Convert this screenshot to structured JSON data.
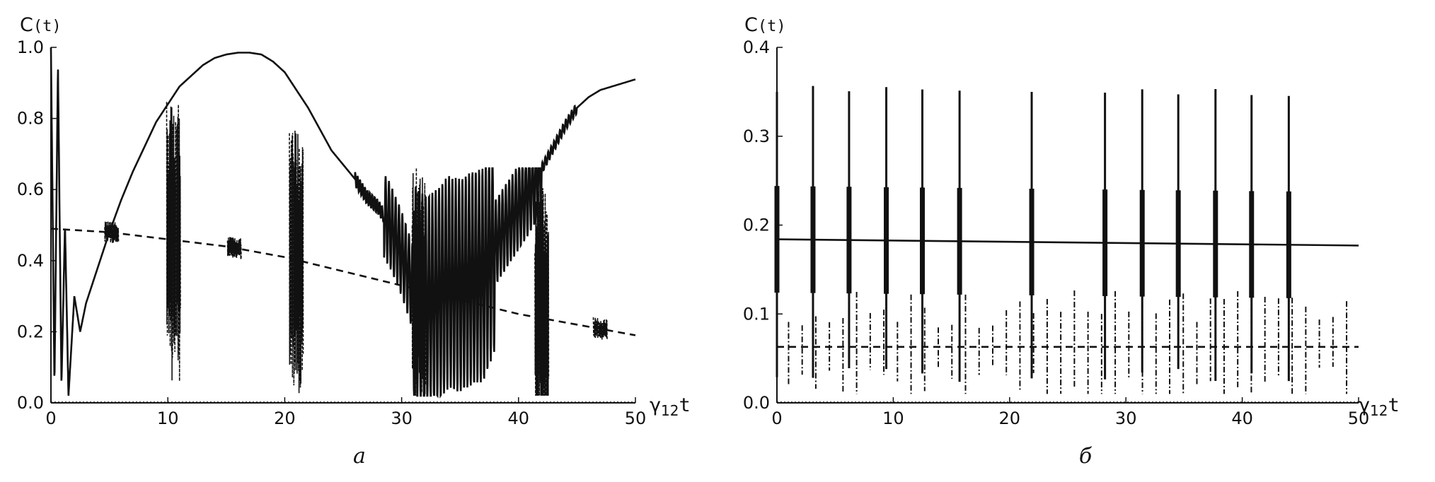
{
  "chart_data": [
    {
      "type": "line",
      "panel_label": "а",
      "ylabel": "C",
      "ylabel_arg": "(t)",
      "xlabel_main": "γ",
      "xlabel_sub": "12",
      "xlabel_var": "t",
      "xlim": [
        0,
        50
      ],
      "ylim": [
        0,
        1.0
      ],
      "xticks": [
        "0",
        "10",
        "20",
        "30",
        "40",
        "50"
      ],
      "yticks": [
        "0.0",
        "0.2",
        "0.4",
        "0.6",
        "0.8",
        "1.0"
      ],
      "grid": false,
      "legend": "none",
      "series": [
        {
          "style": "solid",
          "x": [
            0,
            0.3,
            0.6,
            0.9,
            1.2,
            1.5,
            2.0,
            2.5,
            3,
            4,
            5,
            6,
            7,
            8,
            9,
            10,
            11,
            12,
            13,
            14,
            15,
            16,
            17,
            18,
            19,
            20,
            21,
            22,
            23,
            24,
            25,
            26,
            27,
            28,
            29,
            30,
            31,
            32,
            33,
            34,
            35,
            36,
            37,
            38,
            39,
            40,
            41,
            42,
            43,
            44,
            45,
            46,
            47,
            48,
            49,
            50
          ],
          "y": [
            1.0,
            0.05,
            0.95,
            0.05,
            0.5,
            0.02,
            0.3,
            0.2,
            0.28,
            0.38,
            0.48,
            0.57,
            0.65,
            0.72,
            0.79,
            0.84,
            0.89,
            0.92,
            0.95,
            0.97,
            0.98,
            0.985,
            0.985,
            0.98,
            0.96,
            0.93,
            0.88,
            0.83,
            0.77,
            0.71,
            0.67,
            0.63,
            0.58,
            0.55,
            0.5,
            0.42,
            0.32,
            0.28,
            0.3,
            0.34,
            0.33,
            0.35,
            0.36,
            0.45,
            0.5,
            0.55,
            0.6,
            0.66,
            0.72,
            0.78,
            0.83,
            0.86,
            0.88,
            0.89,
            0.9,
            0.91
          ]
        },
        {
          "style": "dashed",
          "x": [
            0,
            5,
            10,
            15,
            20,
            25,
            30,
            35,
            40,
            45,
            50
          ],
          "y": [
            0.49,
            0.48,
            0.46,
            0.44,
            0.41,
            0.37,
            0.33,
            0.29,
            0.25,
            0.22,
            0.19
          ]
        }
      ]
    },
    {
      "type": "line",
      "panel_label": "б",
      "ylabel": "C",
      "ylabel_arg": "(t)",
      "xlabel_main": "γ",
      "xlabel_sub": "12",
      "xlabel_var": "t",
      "xlim": [
        0,
        50
      ],
      "ylim": [
        0,
        0.4
      ],
      "xticks": [
        "0",
        "10",
        "20",
        "30",
        "40",
        "50"
      ],
      "yticks": [
        "0.0",
        "0.1",
        "0.2",
        "0.3",
        "0.4"
      ],
      "grid": false,
      "legend": "none",
      "series": [
        {
          "style": "solid",
          "x": [
            0,
            50
          ],
          "y": [
            0.184,
            0.177
          ]
        },
        {
          "style": "dashed",
          "x": [
            0,
            50
          ],
          "y": [
            0.063,
            0.063
          ]
        }
      ]
    }
  ]
}
